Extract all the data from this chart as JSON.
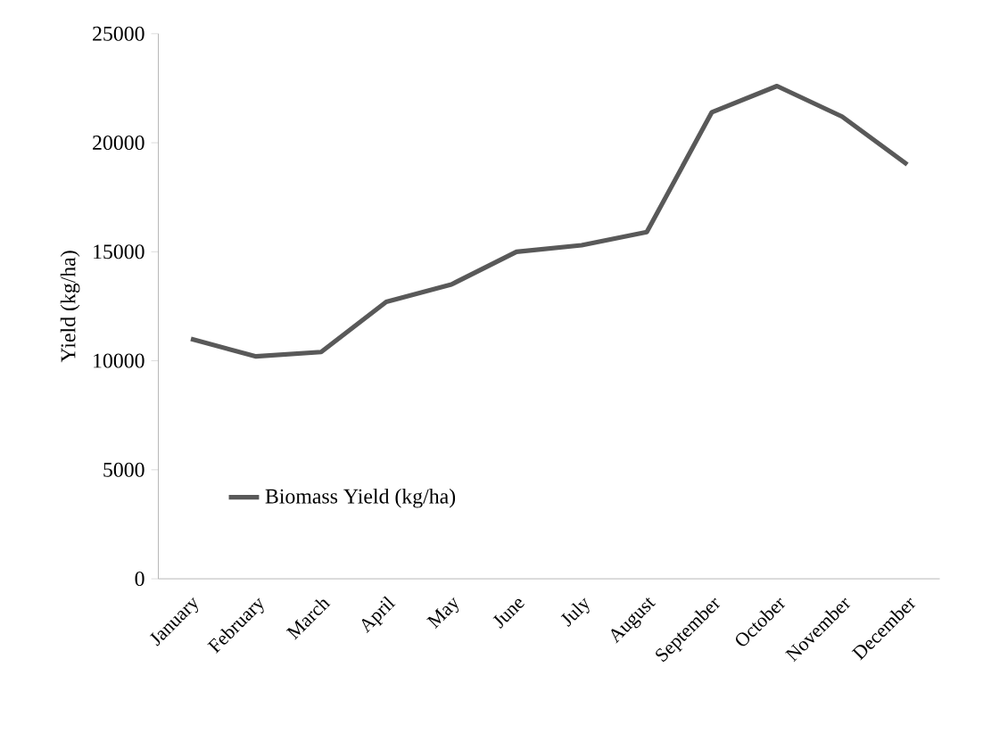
{
  "chart_data": {
    "type": "line",
    "ylabel": "Yield (kg/ha)",
    "categories": [
      "January",
      "February",
      "March",
      "April",
      "May",
      "June",
      "July",
      "August",
      "September",
      "October",
      "November",
      "December"
    ],
    "series": [
      {
        "name": "Biomass Yield (kg/ha)",
        "color": "#595959",
        "values": [
          11000,
          10200,
          10400,
          12700,
          13500,
          15000,
          15300,
          15900,
          21400,
          22600,
          21200,
          19000
        ]
      }
    ],
    "ylim": [
      0,
      25000
    ],
    "yticks": [
      0,
      5000,
      10000,
      15000,
      20000,
      25000
    ],
    "legend": "bottom left",
    "marker": "none",
    "line_style": "solid"
  }
}
